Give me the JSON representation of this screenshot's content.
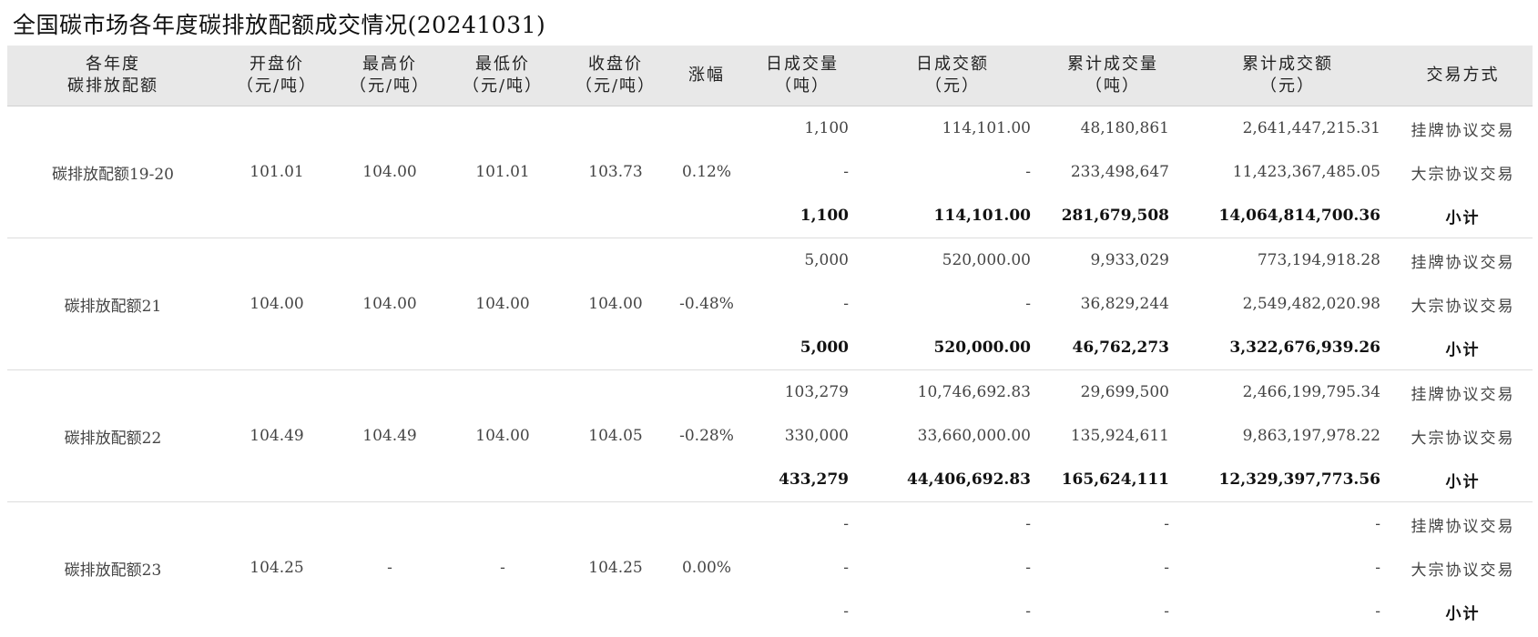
{
  "title": "全国碳市场各年度碳排放配额成交情况(20241031)",
  "headers": {
    "h1": {
      "l1": "各年度",
      "l2": "碳排放配额"
    },
    "h2": {
      "l1": "开盘价",
      "l2": "（元/吨）"
    },
    "h3": {
      "l1": "最高价",
      "l2": "（元/吨）"
    },
    "h4": {
      "l1": "最低价",
      "l2": "（元/吨）"
    },
    "h5": {
      "l1": "收盘价",
      "l2": "（元/吨）"
    },
    "h6": {
      "l1": "涨幅"
    },
    "h7": {
      "l1": "日成交量",
      "l2": "（吨）"
    },
    "h8": {
      "l1": "日成交额",
      "l2": "（元）"
    },
    "h9": {
      "l1": "累计成交量",
      "l2": "（吨）"
    },
    "h10": {
      "l1": "累计成交额",
      "l2": "（元）"
    },
    "h11": {
      "l1": "交易方式"
    }
  },
  "groups": [
    {
      "name": "碳排放配额19-20",
      "open": "101.01",
      "high": "104.00",
      "low": "101.01",
      "close": "103.73",
      "change": "0.12%",
      "rows": [
        {
          "vol": "1,100",
          "amt": "114,101.00",
          "cum_vol": "48,180,861",
          "cum_amt": "2,641,447,215.31",
          "method": "挂牌协议交易"
        },
        {
          "vol": "-",
          "amt": "-",
          "cum_vol": "233,498,647",
          "cum_amt": "11,423,367,485.05",
          "method": "大宗协议交易"
        },
        {
          "vol": "1,100",
          "amt": "114,101.00",
          "cum_vol": "281,679,508",
          "cum_amt": "14,064,814,700.36",
          "method": "小计"
        }
      ]
    },
    {
      "name": "碳排放配额21",
      "open": "104.00",
      "high": "104.00",
      "low": "104.00",
      "close": "104.00",
      "change": "-0.48%",
      "rows": [
        {
          "vol": "5,000",
          "amt": "520,000.00",
          "cum_vol": "9,933,029",
          "cum_amt": "773,194,918.28",
          "method": "挂牌协议交易"
        },
        {
          "vol": "-",
          "amt": "-",
          "cum_vol": "36,829,244",
          "cum_amt": "2,549,482,020.98",
          "method": "大宗协议交易"
        },
        {
          "vol": "5,000",
          "amt": "520,000.00",
          "cum_vol": "46,762,273",
          "cum_amt": "3,322,676,939.26",
          "method": "小计"
        }
      ]
    },
    {
      "name": "碳排放配额22",
      "open": "104.49",
      "high": "104.49",
      "low": "104.00",
      "close": "104.05",
      "change": "-0.28%",
      "rows": [
        {
          "vol": "103,279",
          "amt": "10,746,692.83",
          "cum_vol": "29,699,500",
          "cum_amt": "2,466,199,795.34",
          "method": "挂牌协议交易"
        },
        {
          "vol": "330,000",
          "amt": "33,660,000.00",
          "cum_vol": "135,924,611",
          "cum_amt": "9,863,197,978.22",
          "method": "大宗协议交易"
        },
        {
          "vol": "433,279",
          "amt": "44,406,692.83",
          "cum_vol": "165,624,111",
          "cum_amt": "12,329,397,773.56",
          "method": "小计"
        }
      ]
    },
    {
      "name": "碳排放配额23",
      "open": "104.25",
      "high": "-",
      "low": "-",
      "close": "104.25",
      "change": "0.00%",
      "rows": [
        {
          "vol": "-",
          "amt": "-",
          "cum_vol": "-",
          "cum_amt": "-",
          "method": "挂牌协议交易"
        },
        {
          "vol": "-",
          "amt": "-",
          "cum_vol": "-",
          "cum_amt": "-",
          "method": "大宗协议交易"
        },
        {
          "vol": "-",
          "amt": "-",
          "cum_vol": "-",
          "cum_amt": "-",
          "method": "小计"
        }
      ]
    }
  ]
}
